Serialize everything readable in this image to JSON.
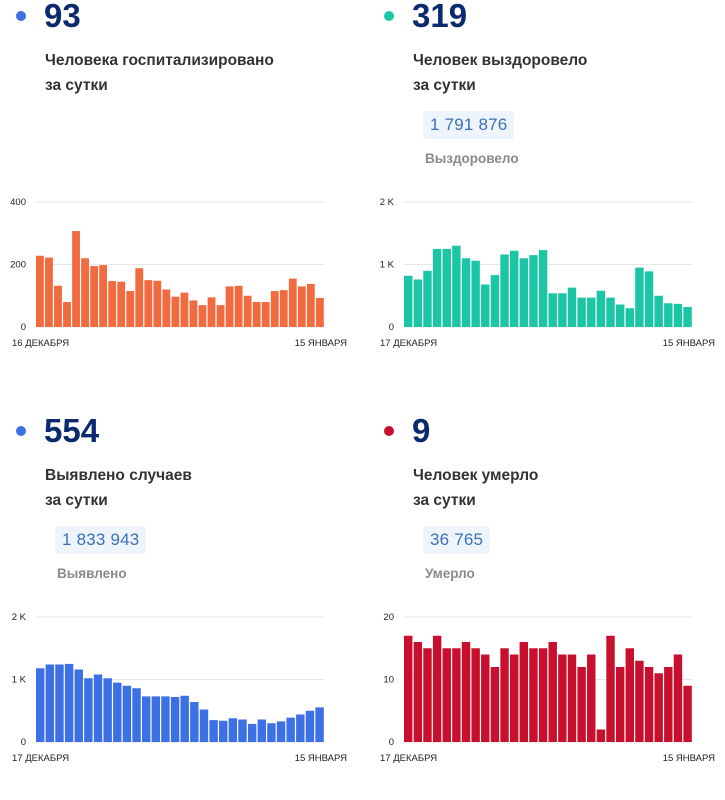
{
  "panels": [
    {
      "id": "hosp",
      "value": "93",
      "description": "Человека госпитализировано\nза сутки",
      "dot_color": "#3d6fe5",
      "total": null,
      "total_label": null
    },
    {
      "id": "rec",
      "value": "319",
      "description": "Человек выздоровело\nза сутки",
      "dot_color": "#1cc6a5",
      "total": "1 791 876",
      "total_label": "Выздоровело"
    },
    {
      "id": "det",
      "value": "554",
      "description": "Выявлено случаев\nза сутки",
      "dot_color": "#3d6fe5",
      "total": "1 833 943",
      "total_label": "Выявлено"
    },
    {
      "id": "dead",
      "value": "9",
      "description": "Человек умерло\nза сутки",
      "dot_color": "#c8102e",
      "total": "36 765",
      "total_label": "Умерло"
    }
  ],
  "chart_data": [
    {
      "type": "bar",
      "color": "#f26a3f",
      "grid": true,
      "ylim": [
        0,
        400
      ],
      "yticks": [
        0,
        200,
        400
      ],
      "ytick_labels": [
        "0",
        "200",
        "400"
      ],
      "x_start_label": "16 ДЕКАБРЯ",
      "x_end_label": "15 ЯНВАРЯ",
      "values": [
        228,
        222,
        132,
        80,
        307,
        220,
        195,
        198,
        147,
        145,
        115,
        188,
        150,
        148,
        120,
        97,
        110,
        85,
        70,
        95,
        70,
        130,
        132,
        100,
        80,
        80,
        115,
        118,
        155,
        130,
        138,
        93
      ]
    },
    {
      "type": "bar",
      "color": "#1cc6a5",
      "grid": true,
      "ylim": [
        0,
        2000
      ],
      "yticks": [
        0,
        1000,
        2000
      ],
      "ytick_labels": [
        "0",
        "1 K",
        "2 K"
      ],
      "x_start_label": "17 ДЕКАБРЯ",
      "x_end_label": "15 ЯНВАРЯ",
      "values": [
        820,
        760,
        900,
        1250,
        1250,
        1300,
        1100,
        1060,
        680,
        830,
        1160,
        1220,
        1100,
        1150,
        1230,
        540,
        540,
        630,
        470,
        470,
        580,
        470,
        360,
        300,
        950,
        890,
        500,
        380,
        370,
        320
      ]
    },
    {
      "type": "bar",
      "color": "#3d6fe5",
      "grid": true,
      "ylim": [
        0,
        2000
      ],
      "yticks": [
        0,
        1000,
        2000
      ],
      "ytick_labels": [
        "0",
        "1 K",
        "2 K"
      ],
      "x_start_label": "17 ДЕКАБРЯ",
      "x_end_label": "15 ЯНВАРЯ",
      "values": [
        1180,
        1240,
        1240,
        1250,
        1160,
        1020,
        1080,
        1020,
        950,
        900,
        860,
        730,
        730,
        730,
        720,
        740,
        640,
        520,
        350,
        340,
        380,
        360,
        290,
        360,
        300,
        330,
        390,
        440,
        500,
        554
      ]
    },
    {
      "type": "bar",
      "color": "#c8102e",
      "grid": true,
      "ylim": [
        0,
        20
      ],
      "yticks": [
        0,
        10,
        20
      ],
      "ytick_labels": [
        "0",
        "10",
        "20"
      ],
      "x_start_label": "17 ДЕКАБРЯ",
      "x_end_label": "15 ЯНВАРЯ",
      "values": [
        17,
        16,
        15,
        17,
        15,
        15,
        16,
        15,
        14,
        12,
        15,
        14,
        16,
        15,
        15,
        16,
        14,
        14,
        12,
        14,
        2,
        17,
        12,
        15,
        13,
        12,
        11,
        12,
        14,
        9
      ]
    }
  ]
}
